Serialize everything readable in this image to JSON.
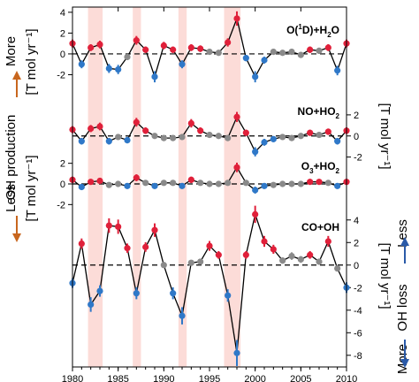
{
  "colors": {
    "highlight": "#fcdcd8",
    "positive": "#e0203a",
    "negative": "#2f78c8",
    "neutral": "#8a8a8a",
    "left_annotation": "#c8661e",
    "right_annotation": "#2a5aa8"
  },
  "annotations": {
    "left": {
      "more": "More",
      "oh_production": "OH production",
      "less": "Less"
    },
    "right": {
      "less": "Less",
      "oh_loss": "OH loss",
      "more": "More"
    }
  },
  "chart_data": {
    "type": "line",
    "x": [
      1980,
      1981,
      1982,
      1983,
      1984,
      1985,
      1986,
      1987,
      1988,
      1989,
      1990,
      1991,
      1992,
      1993,
      1994,
      1995,
      1996,
      1997,
      1998,
      1999,
      2000,
      2001,
      2002,
      2003,
      2004,
      2005,
      2006,
      2007,
      2008,
      2009,
      2010
    ],
    "xlim": [
      1980,
      2010
    ],
    "xticks": [
      "1980",
      "1985",
      "1990",
      "1995",
      "2000",
      "2005",
      "2010"
    ],
    "shaded_periods": [
      [
        1981.7,
        1983.3
      ],
      [
        1986.6,
        1987.5
      ],
      [
        1991.6,
        1992.5
      ],
      [
        1996.6,
        1998.4
      ]
    ],
    "grid": false,
    "panels": [
      {
        "name": "O(¹D)+H₂O",
        "label_parts": {
          "a": "O(",
          "sup": "1",
          "b": "D)+H",
          "sub": "2",
          "c": "O"
        },
        "axis_side": "left",
        "ylabel": "[T mol yr⁻¹]",
        "ylim": [
          -4,
          4.5
        ],
        "yticks": [
          "4",
          "2",
          "0",
          "-2"
        ],
        "values": [
          1.0,
          -1.0,
          0.6,
          0.9,
          -1.4,
          -1.5,
          -0.3,
          1.3,
          0.4,
          -2.2,
          0.8,
          0.4,
          -1.0,
          0.6,
          0.5,
          0.2,
          0.1,
          1.1,
          3.4,
          -0.4,
          -2.2,
          -0.6,
          0.2,
          0.1,
          0.2,
          -0.1,
          0.4,
          0.3,
          0.6,
          -1.6,
          1.0
        ]
      },
      {
        "name": "NO+HO₂",
        "label_parts": {
          "a": "NO+HO",
          "sub": "2"
        },
        "axis_side": "right",
        "ylabel": "[T mol yr⁻¹]",
        "ylim": [
          -2.2,
          3.5
        ],
        "yticks": [
          "2",
          "0",
          "-2"
        ],
        "values": [
          0.6,
          -0.5,
          0.7,
          0.9,
          -0.5,
          -0.1,
          -0.4,
          1.3,
          0.5,
          0.0,
          -0.2,
          -0.2,
          -0.1,
          1.2,
          0.5,
          0.1,
          0.0,
          -0.2,
          1.8,
          0.3,
          -1.5,
          -0.6,
          -0.3,
          -0.1,
          -0.2,
          0.0,
          0.3,
          0.1,
          0.4,
          -0.5,
          0.5
        ]
      },
      {
        "name": "O₃+HO₂",
        "label_parts": {
          "a": "O",
          "sub1": "3",
          "b": "+HO",
          "sub2": "2"
        },
        "axis_side": "left",
        "ylabel": "[T mol yr⁻¹]",
        "ylim": [
          -2.4,
          2.4
        ],
        "yticks": [
          "2",
          "0",
          "-2"
        ],
        "values": [
          0.4,
          -0.3,
          0.2,
          0.3,
          -0.1,
          0.0,
          -0.2,
          0.6,
          0.1,
          -0.2,
          0.1,
          0.1,
          -0.2,
          0.4,
          0.1,
          0.0,
          0.0,
          0.1,
          1.6,
          0.1,
          -0.6,
          -0.2,
          -0.1,
          0.0,
          0.0,
          0.0,
          0.2,
          0.2,
          0.1,
          -0.2,
          0.2
        ]
      },
      {
        "name": "CO+OH",
        "label_parts": {
          "a": "CO+OH"
        },
        "axis_side": "right",
        "ylabel": "[T mol yr⁻¹]",
        "ylim": [
          -8.8,
          5
        ],
        "yticks": [
          "4",
          "2",
          "0",
          "-2",
          "-4",
          "-6",
          "-8"
        ],
        "values": [
          -1.6,
          1.9,
          -3.5,
          -2.3,
          3.5,
          3.4,
          1.5,
          -2.5,
          1.6,
          3.1,
          0.0,
          -2.5,
          -4.5,
          0.2,
          0.3,
          1.7,
          0.9,
          -2.7,
          -7.8,
          0.9,
          4.5,
          2.1,
          1.4,
          0.4,
          0.8,
          0.5,
          0.9,
          0.3,
          2.1,
          -0.3,
          -2.0
        ]
      }
    ]
  }
}
